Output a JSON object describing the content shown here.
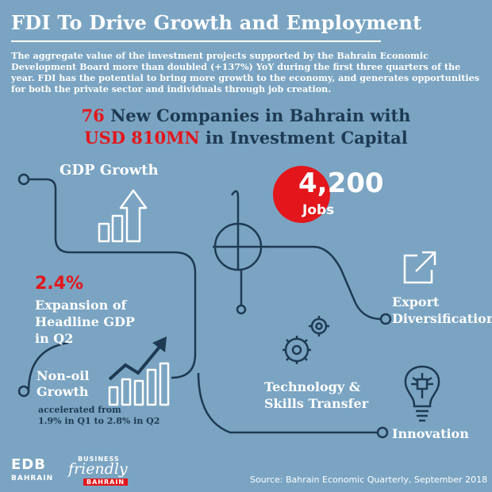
{
  "header": {
    "title": "FDI To Drive Growth and Employment",
    "intro": "The aggregate value of the investment projects supported by the Bahrain Economic Development Board more than doubled (+137%) YoY during the first three quarters of the year. FDI has the potential to bring more growth to the economy, and generates opportunities for both the private sector and individuals through job creation."
  },
  "headline": {
    "line1_number": "76",
    "line1_text": " New Companies in Bahrain with",
    "line2_number": "USD 810MN",
    "line2_text": " in Investment Capital"
  },
  "stats": {
    "gdp_growth_label": "GDP Growth",
    "jobs_number": "4,200",
    "jobs_label": "Jobs",
    "expansion_pct": "2.4%",
    "expansion_line1": "Expansion of",
    "expansion_line2": "Headline GDP",
    "expansion_line3": "in Q2",
    "nonoil_line1": "Non-oil",
    "nonoil_line2": "Growth",
    "nonoil_note_line1": "accelerated from",
    "nonoil_note_line2": "1.9% in Q1 to 2.8% in Q2",
    "export_line1": "Export",
    "export_line2": "Diversification",
    "tech_line1": "Technology &",
    "tech_line2": "Skills Transfer",
    "innovation": "Innovation"
  },
  "footer": {
    "edb_logo": "EDB",
    "edb_sub": "BAHRAIN",
    "bf_top": "BUSINESS",
    "bf_script": "friendly",
    "bf_bottom": "BAHRAIN",
    "source": "Source: Bahrain Economic Quarterly, September 2018"
  },
  "colors": {
    "background": "#7aa4c2",
    "accent_red": "#e3161b",
    "dark_navy": "#1e3a53"
  },
  "icons": [
    "up-arrow-icon",
    "export-arrow-icon",
    "gears-icon",
    "bar-chart-trend-icon",
    "lightbulb-circuit-icon"
  ]
}
